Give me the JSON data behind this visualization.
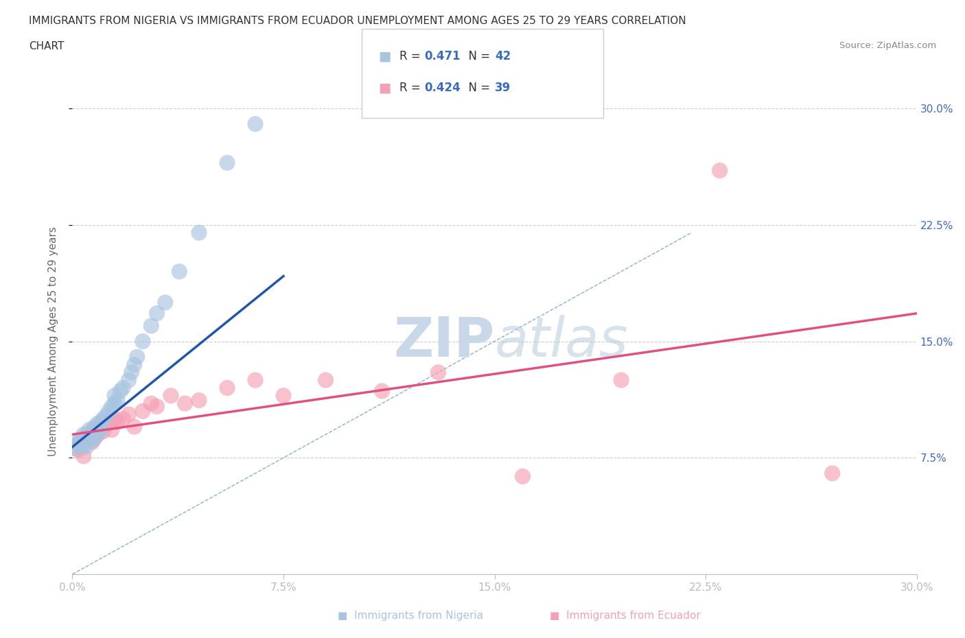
{
  "title_line1": "IMMIGRANTS FROM NIGERIA VS IMMIGRANTS FROM ECUADOR UNEMPLOYMENT AMONG AGES 25 TO 29 YEARS CORRELATION",
  "title_line2": "CHART",
  "source_text": "Source: ZipAtlas.com",
  "ylabel": "Unemployment Among Ages 25 to 29 years",
  "xlim": [
    0.0,
    0.3
  ],
  "ylim": [
    0.0,
    0.3
  ],
  "xtick_labels": [
    "0.0%",
    "7.5%",
    "15.0%",
    "22.5%",
    "30.0%"
  ],
  "ytick_right_labels": [
    "7.5%",
    "15.0%",
    "22.5%",
    "30.0%"
  ],
  "xtick_vals": [
    0.0,
    0.075,
    0.15,
    0.225,
    0.3
  ],
  "ytick_vals": [
    0.075,
    0.15,
    0.225,
    0.3
  ],
  "nigeria_R": "0.471",
  "nigeria_N": "42",
  "ecuador_R": "0.424",
  "ecuador_N": "39",
  "nigeria_color": "#a8c4e0",
  "ecuador_color": "#f4a0b5",
  "nigeria_line_color": "#2255aa",
  "ecuador_line_color": "#e05080",
  "diagonal_color": "#8ab0cc",
  "background_color": "#ffffff",
  "grid_color": "#cccccc",
  "watermark_color": "#c8d8e8",
  "nigeria_scatter_x": [
    0.001,
    0.002,
    0.002,
    0.003,
    0.003,
    0.004,
    0.004,
    0.005,
    0.005,
    0.005,
    0.006,
    0.006,
    0.007,
    0.007,
    0.008,
    0.008,
    0.008,
    0.009,
    0.009,
    0.01,
    0.01,
    0.011,
    0.012,
    0.013,
    0.014,
    0.015,
    0.015,
    0.016,
    0.017,
    0.018,
    0.02,
    0.021,
    0.022,
    0.023,
    0.025,
    0.028,
    0.03,
    0.033,
    0.038,
    0.045,
    0.055,
    0.065
  ],
  "nigeria_scatter_y": [
    0.081,
    0.083,
    0.085,
    0.084,
    0.087,
    0.083,
    0.09,
    0.082,
    0.086,
    0.088,
    0.09,
    0.093,
    0.086,
    0.092,
    0.088,
    0.09,
    0.095,
    0.091,
    0.097,
    0.093,
    0.098,
    0.1,
    0.102,
    0.105,
    0.108,
    0.11,
    0.115,
    0.112,
    0.118,
    0.12,
    0.125,
    0.13,
    0.135,
    0.14,
    0.15,
    0.16,
    0.168,
    0.175,
    0.195,
    0.22,
    0.265,
    0.29
  ],
  "ecuador_scatter_x": [
    0.001,
    0.002,
    0.003,
    0.003,
    0.004,
    0.005,
    0.005,
    0.006,
    0.007,
    0.007,
    0.008,
    0.008,
    0.009,
    0.01,
    0.011,
    0.012,
    0.013,
    0.014,
    0.015,
    0.016,
    0.018,
    0.02,
    0.022,
    0.025,
    0.028,
    0.03,
    0.035,
    0.04,
    0.045,
    0.055,
    0.065,
    0.075,
    0.09,
    0.11,
    0.13,
    0.16,
    0.195,
    0.23,
    0.27
  ],
  "ecuador_scatter_y": [
    0.083,
    0.08,
    0.082,
    0.085,
    0.076,
    0.088,
    0.09,
    0.086,
    0.085,
    0.092,
    0.088,
    0.093,
    0.09,
    0.095,
    0.092,
    0.096,
    0.098,
    0.093,
    0.1,
    0.098,
    0.1,
    0.103,
    0.095,
    0.105,
    0.11,
    0.108,
    0.115,
    0.11,
    0.112,
    0.12,
    0.125,
    0.115,
    0.125,
    0.118,
    0.13,
    0.063,
    0.125,
    0.26,
    0.065
  ],
  "nigeria_regline_x": [
    0.0,
    0.075
  ],
  "nigeria_regline_y": [
    0.082,
    0.192
  ],
  "ecuador_regline_x": [
    0.0,
    0.3
  ],
  "ecuador_regline_y": [
    0.09,
    0.168
  ]
}
